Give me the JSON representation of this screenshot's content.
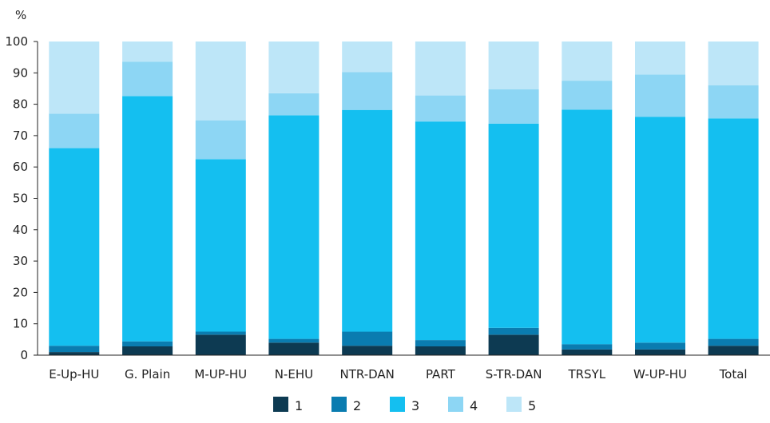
{
  "chart_data": {
    "type": "bar",
    "stacked": true,
    "ylabel": "%",
    "ylim": [
      0,
      100
    ],
    "yticks": [
      0,
      10,
      20,
      30,
      40,
      50,
      60,
      70,
      80,
      90,
      100
    ],
    "grid": false,
    "legend_position": "bottom",
    "categories": [
      "E-Up-HU",
      "G. Plain",
      "M-UP-HU",
      "N-EHU",
      "NTR-DAN",
      "PART",
      "S-TR-DAN",
      "TRSYL",
      "W-UP-HU",
      "Total"
    ],
    "series": [
      {
        "name": "1",
        "color": "#0d3a52",
        "values": [
          1.0,
          2.8,
          6.5,
          4.0,
          3.0,
          2.8,
          6.5,
          1.8,
          1.8,
          3.0
        ]
      },
      {
        "name": "2",
        "color": "#0a7cb0",
        "values": [
          2.0,
          1.6,
          1.0,
          1.2,
          4.5,
          2.0,
          2.2,
          1.7,
          2.2,
          2.2
        ]
      },
      {
        "name": "3",
        "color": "#14bff0",
        "values": [
          63.0,
          78.2,
          55.0,
          71.3,
          70.7,
          69.7,
          65.1,
          74.8,
          72.0,
          70.3
        ]
      },
      {
        "name": "4",
        "color": "#8dd6f4",
        "values": [
          11.0,
          11.0,
          12.3,
          7.0,
          12.0,
          8.3,
          11.0,
          9.2,
          13.5,
          10.5
        ]
      },
      {
        "name": "5",
        "color": "#bde6f8",
        "values": [
          23.0,
          6.4,
          25.2,
          16.5,
          9.8,
          17.2,
          15.2,
          12.5,
          10.5,
          14.0
        ]
      }
    ]
  }
}
